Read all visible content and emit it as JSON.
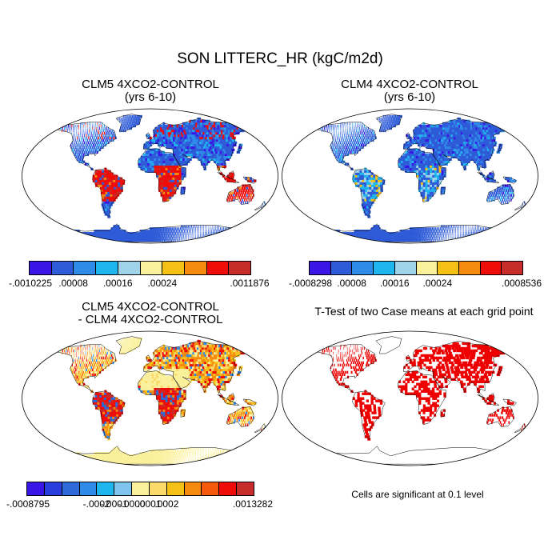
{
  "title": "SON LITTERC_HR (kgC/m2d)",
  "panels": [
    {
      "title_line1": "CLM5 4XCO2-CONTROL",
      "title_line2": "(yrs 6-10)",
      "colorbar": {
        "colors": [
          "#3a16e6",
          "#2e5bd8",
          "#2f8ae8",
          "#1fb5ef",
          "#9fd3ea",
          "#fbf09b",
          "#f6c117",
          "#f58a0f",
          "#ee0d09",
          "#c62d2a"
        ],
        "labels": [
          "-.0010225",
          ".00008",
          ".00016",
          ".00024",
          ".0011876"
        ]
      }
    },
    {
      "title_line1": "CLM4 4XCO2-CONTROL",
      "title_line2": "(yrs 6-10)",
      "colorbar": {
        "colors": [
          "#3a16e6",
          "#2e5bd8",
          "#2f8ae8",
          "#1fb5ef",
          "#9fd3ea",
          "#fbf09b",
          "#f6c117",
          "#f58a0f",
          "#ee0d09",
          "#c62d2a"
        ],
        "labels": [
          "-.0008298",
          ".00008",
          ".00016",
          ".00024",
          ".0008536"
        ]
      }
    },
    {
      "title_line1": "CLM5 4XCO2-CONTROL",
      "title_line2": "- CLM4 4XCO2-CONTROL",
      "colorbar": {
        "colors": [
          "#3a16e6",
          "#2a3ddd",
          "#2e6ad8",
          "#2f8ae8",
          "#1fb5ef",
          "#7fc4ec",
          "#fbf09b",
          "#fbd96a",
          "#f6c117",
          "#f58a0f",
          "#f55a0c",
          "#ee0d09",
          "#c62d2a"
        ],
        "labels": [
          "-.0008795",
          "-.0002",
          "-.0001",
          "-.0000",
          ".0001",
          ".0002",
          ".0013282"
        ]
      }
    },
    {
      "title_line1": "T-Test of two Case means at each grid point",
      "note": "Cells are significant at 0.1 level"
    }
  ]
}
